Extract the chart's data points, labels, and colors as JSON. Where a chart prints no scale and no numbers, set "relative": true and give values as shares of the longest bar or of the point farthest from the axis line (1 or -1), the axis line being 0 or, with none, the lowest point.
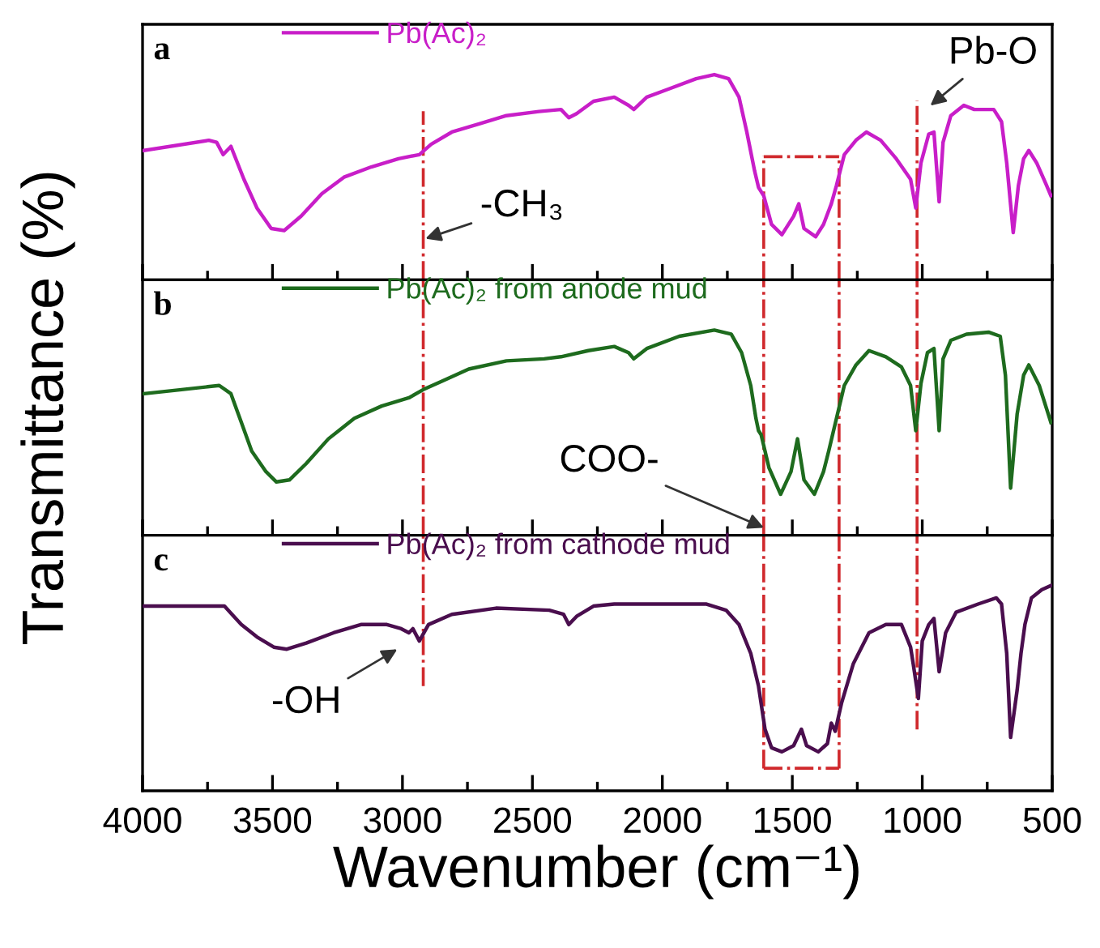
{
  "chart_data": [
    {
      "type": "line",
      "relative": true,
      "x": [
        3995,
        3745,
        3715,
        3690,
        3660,
        3610,
        3560,
        3505,
        3455,
        3390,
        3310,
        3225,
        3120,
        3015,
        2935,
        2890,
        2810,
        2705,
        2600,
        2475,
        2390,
        2360,
        2330,
        2265,
        2185,
        2130,
        2110,
        2060,
        1975,
        1870,
        1800,
        1745,
        1705,
        1675,
        1645,
        1630,
        1610,
        1580,
        1540,
        1495,
        1475,
        1455,
        1410,
        1380,
        1350,
        1330,
        1300,
        1255,
        1215,
        1160,
        1100,
        1045,
        1025,
        1005,
        975,
        955,
        935,
        920,
        890,
        840,
        800,
        725,
        695,
        675,
        650,
        630,
        610,
        590,
        560,
        525,
        505
      ],
      "series": [
        {
          "name": "Pb(Ac)₂",
          "color": "#c81ec8",
          "values": [
            0.63,
            0.68,
            0.67,
            0.61,
            0.65,
            0.49,
            0.35,
            0.25,
            0.24,
            0.31,
            0.42,
            0.5,
            0.55,
            0.59,
            0.61,
            0.66,
            0.72,
            0.76,
            0.8,
            0.82,
            0.83,
            0.79,
            0.81,
            0.87,
            0.89,
            0.85,
            0.83,
            0.89,
            0.93,
            0.98,
            1.0,
            0.98,
            0.89,
            0.72,
            0.53,
            0.45,
            0.41,
            0.27,
            0.22,
            0.31,
            0.37,
            0.25,
            0.21,
            0.27,
            0.37,
            0.46,
            0.61,
            0.68,
            0.72,
            0.68,
            0.59,
            0.49,
            0.35,
            0.57,
            0.71,
            0.72,
            0.38,
            0.67,
            0.8,
            0.85,
            0.83,
            0.83,
            0.77,
            0.57,
            0.23,
            0.46,
            0.59,
            0.63,
            0.57,
            0.47,
            0.41
          ]
        }
      ],
      "xlim": [
        4000,
        500
      ],
      "xticks": [
        4000,
        {
          "value": 3750,
          "label": null
        },
        3500,
        {
          "value": 3250,
          "label": null
        },
        3000,
        {
          "value": 2750,
          "label": null
        },
        2500,
        {
          "value": 2250,
          "label": null
        },
        2000,
        {
          "value": 1750,
          "label": null
        },
        1500,
        {
          "value": 1250,
          "label": null
        },
        1000,
        {
          "value": 750,
          "label": null
        },
        500
      ],
      "tick_labels": false,
      "legend": "top",
      "annotations": [
        "a",
        "-CH₃",
        "Pb-O"
      ],
      "ref_lines": [
        {
          "axis": "x",
          "value": 2920,
          "color": "#d0282c",
          "line_style": "dashdot"
        },
        {
          "axis": "x",
          "value": 1020,
          "color": "#d0282c",
          "line_style": "dashdot"
        },
        {
          "axis": "x",
          "value": 1610,
          "color": "#d0282c",
          "line_style": "dashdot"
        },
        {
          "axis": "x",
          "value": 1320,
          "color": "#d0282c",
          "line_style": "dashdot"
        },
        {
          "axis": "y",
          "value": 0.6,
          "color": "#d0282c",
          "line_style": "dashdot"
        }
      ]
    },
    {
      "type": "line",
      "relative": true,
      "x": [
        3995,
        3850,
        3705,
        3660,
        3620,
        3580,
        3525,
        3485,
        3435,
        3370,
        3285,
        3245,
        3185,
        3080,
        2975,
        2920,
        2850,
        2745,
        2600,
        2455,
        2390,
        2285,
        2185,
        2130,
        2110,
        2060,
        1935,
        1800,
        1735,
        1695,
        1660,
        1640,
        1630,
        1620,
        1590,
        1545,
        1505,
        1480,
        1455,
        1415,
        1380,
        1360,
        1330,
        1300,
        1255,
        1205,
        1140,
        1080,
        1045,
        1025,
        1005,
        980,
        955,
        935,
        920,
        890,
        830,
        745,
        700,
        680,
        660,
        635,
        610,
        590,
        550,
        505
      ],
      "series": [
        {
          "name": "Pb(Ac)₂ from anode mud",
          "color": "#1e6b1e",
          "values": [
            0.69,
            0.71,
            0.73,
            0.69,
            0.55,
            0.41,
            0.31,
            0.26,
            0.27,
            0.35,
            0.47,
            0.51,
            0.57,
            0.63,
            0.67,
            0.71,
            0.75,
            0.81,
            0.85,
            0.86,
            0.87,
            0.9,
            0.92,
            0.89,
            0.86,
            0.91,
            0.97,
            1.0,
            0.98,
            0.89,
            0.73,
            0.57,
            0.51,
            0.49,
            0.33,
            0.2,
            0.31,
            0.47,
            0.27,
            0.2,
            0.31,
            0.41,
            0.57,
            0.73,
            0.83,
            0.9,
            0.87,
            0.82,
            0.73,
            0.51,
            0.74,
            0.89,
            0.91,
            0.51,
            0.86,
            0.95,
            0.98,
            0.99,
            0.97,
            0.78,
            0.23,
            0.59,
            0.78,
            0.83,
            0.73,
            0.55
          ]
        }
      ],
      "xlim": [
        4000,
        500
      ],
      "xticks": [
        4000,
        {
          "value": 3750,
          "label": null
        },
        3500,
        {
          "value": 3250,
          "label": null
        },
        3000,
        {
          "value": 2750,
          "label": null
        },
        2500,
        {
          "value": 2250,
          "label": null
        },
        2000,
        {
          "value": 1750,
          "label": null
        },
        1500,
        {
          "value": 1250,
          "label": null
        },
        1000,
        {
          "value": 750,
          "label": null
        },
        500
      ],
      "tick_labels": false,
      "legend": "top",
      "ylabel": "Transmittance (%)",
      "annotations": [
        "b",
        "COO-"
      ],
      "ref_lines": [
        {
          "axis": "x",
          "value": 2920,
          "color": "#d0282c",
          "line_style": "dashdot"
        },
        {
          "axis": "x",
          "value": 1020,
          "color": "#d0282c",
          "line_style": "dashdot"
        },
        {
          "axis": "x",
          "value": 1610,
          "color": "#d0282c",
          "line_style": "dashdot"
        },
        {
          "axis": "x",
          "value": 1320,
          "color": "#d0282c",
          "line_style": "dashdot"
        }
      ]
    },
    {
      "type": "line",
      "relative": true,
      "x": [
        3995,
        3850,
        3685,
        3620,
        3560,
        3495,
        3445,
        3370,
        3265,
        3160,
        3060,
        3005,
        2975,
        2960,
        2935,
        2900,
        2810,
        2640,
        2435,
        2380,
        2360,
        2330,
        2265,
        2185,
        1975,
        1830,
        1755,
        1705,
        1660,
        1630,
        1605,
        1580,
        1540,
        1495,
        1465,
        1445,
        1400,
        1365,
        1350,
        1335,
        1310,
        1265,
        1205,
        1140,
        1080,
        1045,
        1035,
        1015,
        1000,
        975,
        955,
        935,
        910,
        870,
        785,
        715,
        695,
        675,
        660,
        635,
        620,
        605,
        580,
        540,
        505
      ],
      "series": [
        {
          "name": "Pb(Ac)₂ from cathode mud",
          "color": "#4a0e4e",
          "values": [
            0.9,
            0.9,
            0.9,
            0.81,
            0.75,
            0.7,
            0.69,
            0.72,
            0.77,
            0.81,
            0.81,
            0.79,
            0.77,
            0.79,
            0.73,
            0.81,
            0.86,
            0.89,
            0.88,
            0.86,
            0.81,
            0.85,
            0.9,
            0.91,
            0.91,
            0.91,
            0.88,
            0.81,
            0.67,
            0.51,
            0.3,
            0.21,
            0.19,
            0.22,
            0.3,
            0.22,
            0.19,
            0.23,
            0.33,
            0.29,
            0.43,
            0.62,
            0.77,
            0.81,
            0.81,
            0.7,
            0.62,
            0.45,
            0.73,
            0.81,
            0.84,
            0.58,
            0.77,
            0.87,
            0.91,
            0.94,
            0.91,
            0.67,
            0.26,
            0.49,
            0.67,
            0.81,
            0.94,
            0.98,
            1.0
          ]
        }
      ],
      "xlim": [
        4000,
        500
      ],
      "xticks": [
        4000,
        {
          "value": 3750,
          "label": null
        },
        3500,
        {
          "value": 3250,
          "label": null
        },
        3000,
        {
          "value": 2750,
          "label": null
        },
        2500,
        {
          "value": 2250,
          "label": null
        },
        2000,
        {
          "value": 1750,
          "label": null
        },
        1500,
        {
          "value": 1250,
          "label": null
        },
        1000,
        {
          "value": 750,
          "label": null
        },
        500
      ],
      "tick_labels": "x",
      "legend": "top",
      "xlabel": "Wavenumber (cm⁻¹)",
      "annotations": [
        "c",
        "-OH"
      ],
      "ref_lines": [
        {
          "axis": "x",
          "value": 2920,
          "color": "#d0282c",
          "line_style": "dashdot"
        },
        {
          "axis": "x",
          "value": 1020,
          "color": "#d0282c",
          "line_style": "dashdot"
        },
        {
          "axis": "x",
          "value": 1610,
          "color": "#d0282c",
          "line_style": "dashdot"
        },
        {
          "axis": "x",
          "value": 1320,
          "color": "#d0282c",
          "line_style": "dashdot"
        },
        {
          "axis": "y",
          "value": 0.11,
          "color": "#d0282c",
          "line_style": "dashdot"
        }
      ]
    }
  ]
}
